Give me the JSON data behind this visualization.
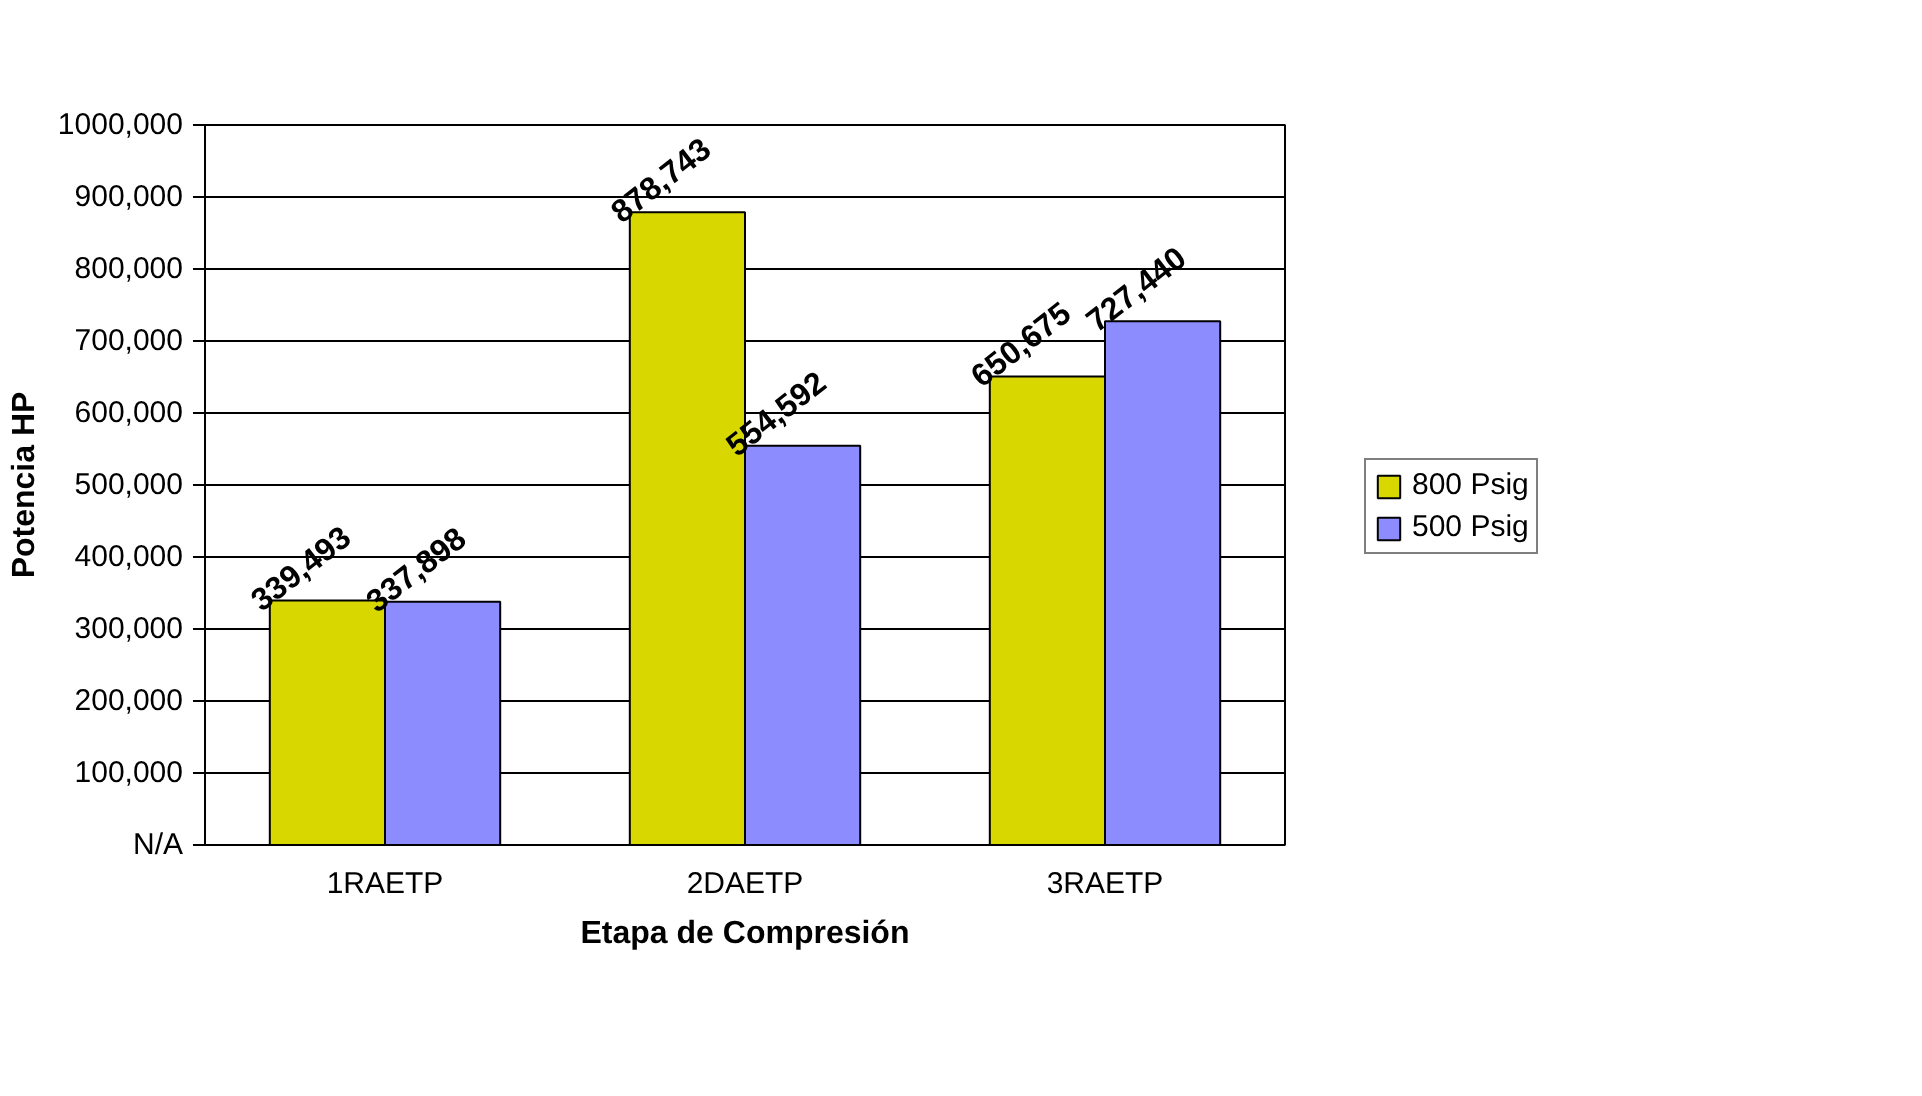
{
  "chart_data": {
    "type": "bar",
    "xlabel": "Etapa de Compresión",
    "ylabel": "Potencia HP",
    "categories": [
      "1RAETP",
      "2DAETP",
      "3RAETP"
    ],
    "series": [
      {
        "name": "800 Psig",
        "color": "#d8d800",
        "values": [
          339493,
          878743,
          650675
        ],
        "value_labels": [
          "339,493",
          "878,743",
          "650,675"
        ]
      },
      {
        "name": "500 Psig",
        "color": "#8c8cff",
        "values": [
          337898,
          554592,
          727440
        ],
        "value_labels": [
          "337,898",
          "554,592",
          "727,440"
        ]
      }
    ],
    "ylim": [
      0,
      1000000
    ],
    "yticks": [
      {
        "value": 0,
        "label": "N/A"
      },
      {
        "value": 100000,
        "label": "100,000"
      },
      {
        "value": 200000,
        "label": "200,000"
      },
      {
        "value": 300000,
        "label": "300,000"
      },
      {
        "value": 400000,
        "label": "400,000"
      },
      {
        "value": 500000,
        "label": "500,000"
      },
      {
        "value": 600000,
        "label": "600,000"
      },
      {
        "value": 700000,
        "label": "700,000"
      },
      {
        "value": 800000,
        "label": "800,000"
      },
      {
        "value": 900000,
        "label": "900,000"
      },
      {
        "value": 1000000,
        "label": "1000,000"
      }
    ],
    "grid": "y",
    "legend": "right"
  }
}
